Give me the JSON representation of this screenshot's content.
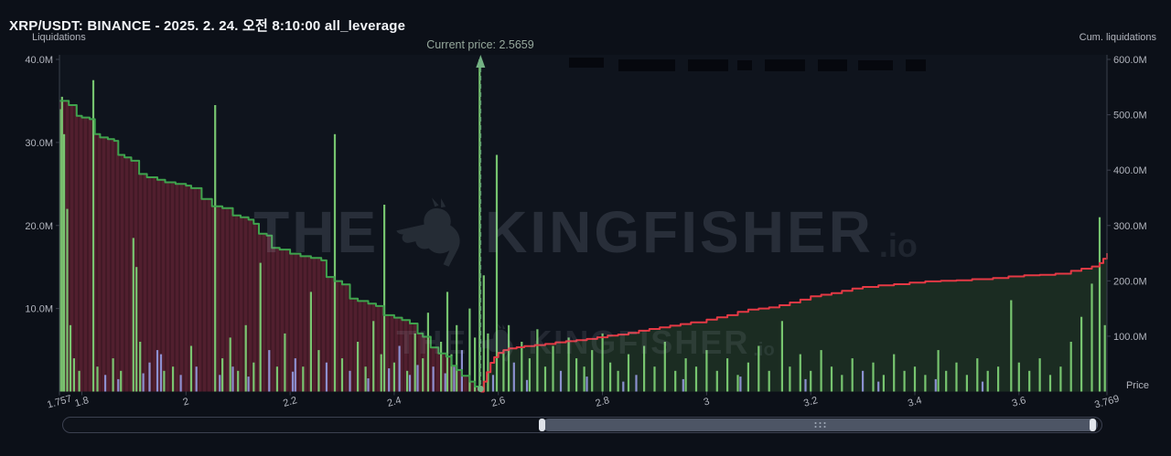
{
  "header": {
    "title": "XRP/USDT: BINANCE - 2025. 2. 24. 오전 8:10:00 all_leverage"
  },
  "axes": {
    "left_title": "Liquidations",
    "right_title": "Cum. liquidations",
    "price_label": "Price",
    "left_ticks": [
      [
        40,
        "40.0M"
      ],
      [
        30,
        "30.0M"
      ],
      [
        20,
        "20.0M"
      ],
      [
        10,
        "10.0M"
      ]
    ],
    "right_ticks": [
      [
        600,
        "600.0M"
      ],
      [
        500,
        "500.0M"
      ],
      [
        400,
        "400.0M"
      ],
      [
        300,
        "300.0M"
      ],
      [
        200,
        "200.0M"
      ],
      [
        100,
        "100.0M"
      ]
    ],
    "x_ticks": [
      [
        1.757,
        "1.757"
      ],
      [
        1.8,
        "1.8"
      ],
      [
        2,
        "2"
      ],
      [
        2.2,
        "2.2"
      ],
      [
        2.4,
        "2.4"
      ],
      [
        2.6,
        "2.6"
      ],
      [
        2.8,
        "2.8"
      ],
      [
        3,
        "3"
      ],
      [
        3.2,
        "3.2"
      ],
      [
        3.4,
        "3.4"
      ],
      [
        3.6,
        "3.6"
      ],
      [
        3.769,
        "3.769"
      ]
    ]
  },
  "current_price": {
    "value": 2.5659,
    "label": "Current price: 2.5659"
  },
  "watermark": {
    "prefix": "THE",
    "name": "KINGFISHER",
    "suffix": ".io"
  },
  "colors": {
    "background": "#0c1018",
    "plot_background": "#0f141d",
    "axis_text": "#b2b5be",
    "axis_line": "#3a3f4c",
    "long_line": "#3fa34d",
    "long_fill": "#511f2e",
    "short_line": "#e53945",
    "short_fill": "#1b2c22",
    "bar_green": "#7ccd74",
    "bar_purple": "#9196d9",
    "current_price_marker": "#74b284",
    "redacted_box": "#06080e"
  },
  "redacted_boxes": [
    [
      622,
      63,
      38,
      11
    ],
    [
      676,
      65,
      62,
      13
    ],
    [
      752,
      65,
      44,
      13
    ],
    [
      806,
      66,
      16,
      11
    ],
    [
      836,
      65,
      44,
      13
    ],
    [
      894,
      65,
      32,
      13
    ],
    [
      938,
      66,
      38,
      11
    ],
    [
      990,
      65,
      22,
      13
    ]
  ],
  "chart_data": {
    "type": "composite",
    "title": "XRP/USDT: BINANCE - 2025. 2. 24. 오전 8:10:00 all_leverage",
    "x_axis": {
      "label": "Price",
      "range": [
        1.757,
        3.769
      ]
    },
    "y_left": {
      "label": "Liquidations",
      "max_m": 40,
      "units": "millions"
    },
    "y_right": {
      "label": "Cum. liquidations",
      "max_m": 600,
      "units": "millions"
    },
    "current_price": 2.5659,
    "legend_position": "none",
    "grid": false,
    "series": [
      {
        "name": "cumulative-liquidations-below-price",
        "type": "step-line",
        "axis": "left",
        "color": "#3fa34d",
        "fill": "#511f2e",
        "stripe": true,
        "points": [
          [
            1.757,
            35
          ],
          [
            1.775,
            34.5
          ],
          [
            1.79,
            33.2
          ],
          [
            1.8,
            33
          ],
          [
            1.815,
            32.8
          ],
          [
            1.825,
            31
          ],
          [
            1.835,
            30.6
          ],
          [
            1.85,
            30.4
          ],
          [
            1.862,
            30.2
          ],
          [
            1.87,
            28.5
          ],
          [
            1.882,
            28.2
          ],
          [
            1.895,
            27.8
          ],
          [
            1.91,
            26.2
          ],
          [
            1.925,
            25.8
          ],
          [
            1.945,
            25.5
          ],
          [
            1.96,
            25.2
          ],
          [
            1.98,
            25
          ],
          [
            2.0,
            24.8
          ],
          [
            2.01,
            24.5
          ],
          [
            2.03,
            23.2
          ],
          [
            2.05,
            22.3
          ],
          [
            2.07,
            22.1
          ],
          [
            2.09,
            21.2
          ],
          [
            2.105,
            21
          ],
          [
            2.12,
            20.7
          ],
          [
            2.13,
            20.2
          ],
          [
            2.14,
            19
          ],
          [
            2.155,
            18.8
          ],
          [
            2.165,
            17.3
          ],
          [
            2.18,
            17.1
          ],
          [
            2.2,
            16.6
          ],
          [
            2.22,
            16.3
          ],
          [
            2.24,
            16.1
          ],
          [
            2.26,
            15.8
          ],
          [
            2.27,
            13.8
          ],
          [
            2.285,
            13.3
          ],
          [
            2.3,
            12.9
          ],
          [
            2.315,
            11.2
          ],
          [
            2.33,
            10.9
          ],
          [
            2.35,
            10.6
          ],
          [
            2.365,
            10.3
          ],
          [
            2.38,
            9.2
          ],
          [
            2.4,
            8.9
          ],
          [
            2.415,
            8.6
          ],
          [
            2.43,
            8.2
          ],
          [
            2.445,
            7
          ],
          [
            2.455,
            6.6
          ],
          [
            2.47,
            5.3
          ],
          [
            2.485,
            4.6
          ],
          [
            2.5,
            4.2
          ],
          [
            2.51,
            3.1
          ],
          [
            2.52,
            2.6
          ],
          [
            2.53,
            1.9
          ],
          [
            2.545,
            1.2
          ],
          [
            2.555,
            0.6
          ],
          [
            2.5659,
            0
          ]
        ]
      },
      {
        "name": "cumulative-liquidations-above-price",
        "type": "step-line",
        "axis": "right",
        "color": "#e53945",
        "fill": "#1b2c22",
        "stripe": false,
        "points": [
          [
            2.5659,
            0
          ],
          [
            2.572,
            18
          ],
          [
            2.578,
            35
          ],
          [
            2.585,
            52
          ],
          [
            2.592,
            62
          ],
          [
            2.6,
            70
          ],
          [
            2.61,
            75
          ],
          [
            2.62,
            78
          ],
          [
            2.635,
            80
          ],
          [
            2.65,
            82
          ],
          [
            2.67,
            84
          ],
          [
            2.69,
            86
          ],
          [
            2.71,
            89
          ],
          [
            2.73,
            91
          ],
          [
            2.75,
            93
          ],
          [
            2.77,
            95
          ],
          [
            2.79,
            98
          ],
          [
            2.81,
            101
          ],
          [
            2.83,
            103
          ],
          [
            2.85,
            106
          ],
          [
            2.87,
            110
          ],
          [
            2.89,
            113
          ],
          [
            2.91,
            116
          ],
          [
            2.93,
            119
          ],
          [
            2.95,
            122
          ],
          [
            2.97,
            125
          ],
          [
            3.0,
            130
          ],
          [
            3.02,
            134
          ],
          [
            3.04,
            138
          ],
          [
            3.06,
            144
          ],
          [
            3.08,
            148
          ],
          [
            3.1,
            150
          ],
          [
            3.12,
            152
          ],
          [
            3.14,
            156
          ],
          [
            3.16,
            161
          ],
          [
            3.18,
            166
          ],
          [
            3.2,
            172
          ],
          [
            3.22,
            175
          ],
          [
            3.24,
            178
          ],
          [
            3.26,
            182
          ],
          [
            3.28,
            186
          ],
          [
            3.3,
            189
          ],
          [
            3.33,
            192
          ],
          [
            3.36,
            194
          ],
          [
            3.39,
            197
          ],
          [
            3.42,
            199
          ],
          [
            3.45,
            200
          ],
          [
            3.48,
            201
          ],
          [
            3.51,
            203
          ],
          [
            3.55,
            205
          ],
          [
            3.58,
            208
          ],
          [
            3.61,
            210
          ],
          [
            3.64,
            211
          ],
          [
            3.67,
            213
          ],
          [
            3.7,
            218
          ],
          [
            3.72,
            222
          ],
          [
            3.74,
            226
          ],
          [
            3.755,
            232
          ],
          [
            3.762,
            240
          ],
          [
            3.769,
            250
          ]
        ]
      },
      {
        "name": "liquidation-volume-bars",
        "type": "bar",
        "axis": "left",
        "color": "#7ccd74",
        "points": [
          [
            1.758,
            34
          ],
          [
            1.762,
            35.5
          ],
          [
            1.766,
            31
          ],
          [
            1.772,
            22
          ],
          [
            1.778,
            8
          ],
          [
            1.785,
            4
          ],
          [
            1.795,
            2.5
          ],
          [
            1.822,
            37.5
          ],
          [
            1.83,
            3
          ],
          [
            1.86,
            4
          ],
          [
            1.875,
            2.5
          ],
          [
            1.899,
            18.5
          ],
          [
            1.905,
            15
          ],
          [
            1.912,
            6
          ],
          [
            1.958,
            2.5
          ],
          [
            1.975,
            3
          ],
          [
            2.01,
            5.5
          ],
          [
            2.056,
            34.5
          ],
          [
            2.07,
            4
          ],
          [
            2.085,
            6.5
          ],
          [
            2.1,
            2.5
          ],
          [
            2.115,
            8
          ],
          [
            2.13,
            3.5
          ],
          [
            2.143,
            15.5
          ],
          [
            2.175,
            3
          ],
          [
            2.19,
            7
          ],
          [
            2.225,
            3
          ],
          [
            2.24,
            12
          ],
          [
            2.255,
            5
          ],
          [
            2.286,
            31
          ],
          [
            2.3,
            4
          ],
          [
            2.33,
            6
          ],
          [
            2.345,
            3
          ],
          [
            2.36,
            8.5
          ],
          [
            2.375,
            4.5
          ],
          [
            2.381,
            22.5
          ],
          [
            2.4,
            3.5
          ],
          [
            2.425,
            2.5
          ],
          [
            2.44,
            7
          ],
          [
            2.455,
            4
          ],
          [
            2.465,
            9.5
          ],
          [
            2.49,
            6
          ],
          [
            2.502,
            12
          ],
          [
            2.51,
            4.5
          ],
          [
            2.52,
            8
          ],
          [
            2.545,
            10
          ],
          [
            2.555,
            6.5
          ],
          [
            2.564,
            40
          ],
          [
            2.572,
            14
          ],
          [
            2.58,
            7
          ],
          [
            2.597,
            28.5
          ],
          [
            2.61,
            5
          ],
          [
            2.62,
            8
          ],
          [
            2.645,
            6
          ],
          [
            2.66,
            4
          ],
          [
            2.675,
            7.5
          ],
          [
            2.69,
            3
          ],
          [
            2.705,
            5.5
          ],
          [
            2.735,
            6.5
          ],
          [
            2.75,
            4
          ],
          [
            2.765,
            3
          ],
          [
            2.78,
            5
          ],
          [
            2.8,
            7
          ],
          [
            2.815,
            3.5
          ],
          [
            2.83,
            2.5
          ],
          [
            2.85,
            4.5
          ],
          [
            2.88,
            5.5
          ],
          [
            2.9,
            3
          ],
          [
            2.92,
            6
          ],
          [
            2.94,
            2.5
          ],
          [
            2.96,
            4
          ],
          [
            2.98,
            3
          ],
          [
            3.0,
            5
          ],
          [
            3.02,
            2.5
          ],
          [
            3.04,
            4
          ],
          [
            3.06,
            2
          ],
          [
            3.08,
            3.5
          ],
          [
            3.1,
            5.5
          ],
          [
            3.12,
            2.5
          ],
          [
            3.145,
            8.5
          ],
          [
            3.16,
            3
          ],
          [
            3.18,
            4.5
          ],
          [
            3.2,
            2.5
          ],
          [
            3.22,
            5
          ],
          [
            3.24,
            3
          ],
          [
            3.26,
            2
          ],
          [
            3.28,
            4
          ],
          [
            3.32,
            3.5
          ],
          [
            3.34,
            2
          ],
          [
            3.36,
            4.5
          ],
          [
            3.38,
            2.5
          ],
          [
            3.4,
            3
          ],
          [
            3.42,
            2
          ],
          [
            3.445,
            5
          ],
          [
            3.46,
            2.5
          ],
          [
            3.48,
            3.5
          ],
          [
            3.5,
            2
          ],
          [
            3.52,
            4
          ],
          [
            3.54,
            2.5
          ],
          [
            3.56,
            3
          ],
          [
            3.585,
            11
          ],
          [
            3.6,
            3.5
          ],
          [
            3.62,
            2.5
          ],
          [
            3.64,
            4
          ],
          [
            3.66,
            2
          ],
          [
            3.68,
            3
          ],
          [
            3.7,
            6
          ],
          [
            3.72,
            9
          ],
          [
            3.74,
            13
          ],
          [
            3.755,
            21
          ],
          [
            3.765,
            8
          ]
        ]
      },
      {
        "name": "liquidation-volume-bars-alt",
        "type": "bar",
        "axis": "left",
        "color": "#9196d9",
        "points": [
          [
            1.845,
            2
          ],
          [
            1.87,
            1.5
          ],
          [
            1.918,
            2.2
          ],
          [
            1.93,
            3.5
          ],
          [
            1.945,
            5
          ],
          [
            1.952,
            4.5
          ],
          [
            1.99,
            2
          ],
          [
            2.02,
            3
          ],
          [
            2.065,
            2
          ],
          [
            2.09,
            3
          ],
          [
            2.12,
            1.8
          ],
          [
            2.16,
            5
          ],
          [
            2.205,
            2.4
          ],
          [
            2.21,
            4
          ],
          [
            2.27,
            3.5
          ],
          [
            2.315,
            2.5
          ],
          [
            2.35,
            1.6
          ],
          [
            2.39,
            2.8
          ],
          [
            2.41,
            5.5
          ],
          [
            2.43,
            2
          ],
          [
            2.445,
            3.2
          ],
          [
            2.475,
            3
          ],
          [
            2.498,
            2.2
          ],
          [
            2.515,
            3
          ],
          [
            2.53,
            5
          ],
          [
            2.59,
            2
          ],
          [
            2.63,
            3.5
          ],
          [
            2.655,
            1.4
          ],
          [
            2.72,
            2.5
          ],
          [
            2.77,
            1.8
          ],
          [
            2.84,
            1.2
          ],
          [
            2.865,
            2
          ],
          [
            2.955,
            1.5
          ],
          [
            3.065,
            1.8
          ],
          [
            3.19,
            1.5
          ],
          [
            3.3,
            2.5
          ],
          [
            3.33,
            1.2
          ],
          [
            3.44,
            1.5
          ],
          [
            3.53,
            1.2
          ]
        ]
      }
    ]
  }
}
